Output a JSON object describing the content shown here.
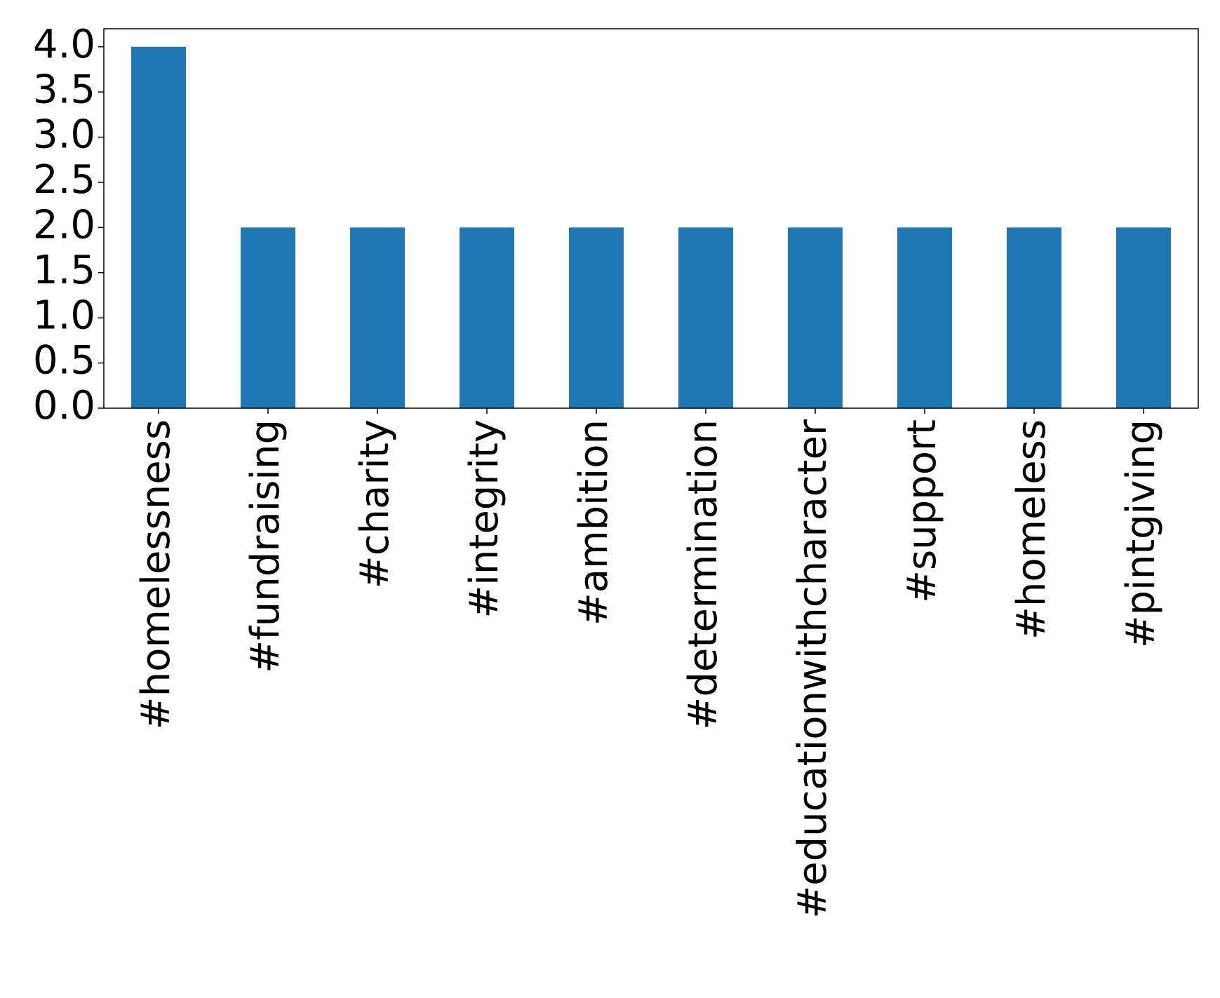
{
  "chart_data": {
    "type": "bar",
    "categories": [
      "#homelessness",
      "#fundraising",
      "#charity",
      "#integrity",
      "#ambition",
      "#determination",
      "#educationwithcharacter",
      "#support",
      "#homeless",
      "#pintgiving"
    ],
    "values": [
      4,
      2,
      2,
      2,
      2,
      2,
      2,
      2,
      2,
      2
    ],
    "color": "#1f77b4",
    "ylim": [
      0,
      4.2
    ],
    "yticks": [
      {
        "value": 0,
        "label": "0.0"
      },
      {
        "value": 0.5,
        "label": "0.5"
      },
      {
        "value": 1,
        "label": "1.0"
      },
      {
        "value": 1.5,
        "label": "1.5"
      },
      {
        "value": 2,
        "label": "2.0"
      },
      {
        "value": 2.5,
        "label": "2.5"
      },
      {
        "value": 3,
        "label": "3.0"
      },
      {
        "value": 3.5,
        "label": "3.5"
      },
      {
        "value": 4,
        "label": "4.0"
      }
    ],
    "grid": false
  }
}
